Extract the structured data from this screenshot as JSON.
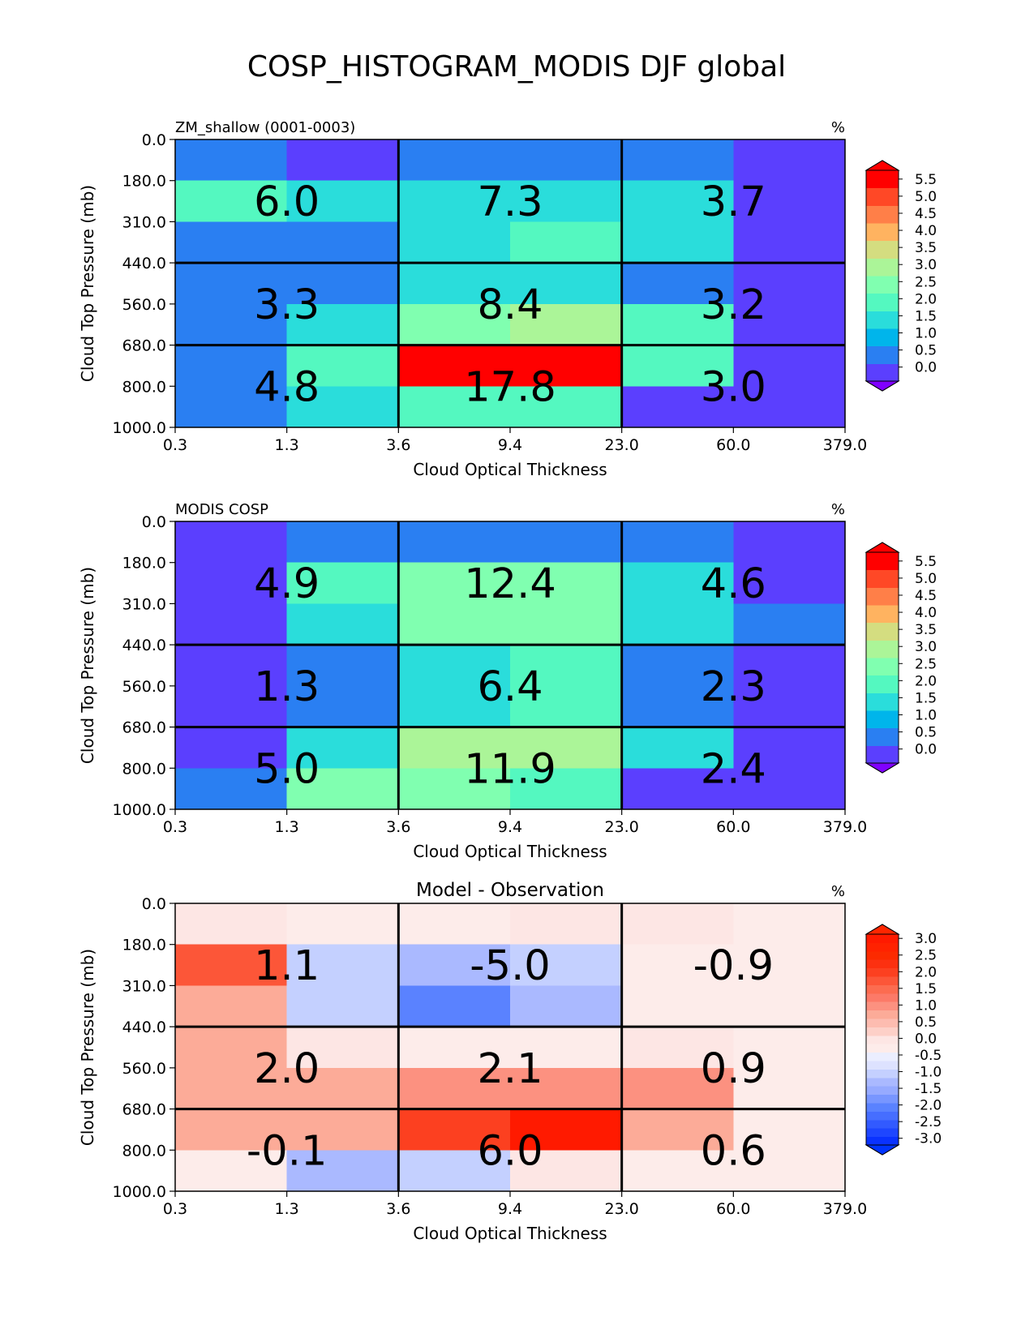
{
  "figure": {
    "title": "COSP_HISTOGRAM_MODIS DJF global"
  },
  "chart_data": [
    {
      "type": "heatmap",
      "panel_label": "ZM_shallow (0001-0003)",
      "title": "",
      "units": "%",
      "xlabel": "Cloud Optical Thickness",
      "ylabel": "Cloud Top Pressure (mb)",
      "x_ticks": [
        "0.3",
        "1.3",
        "3.6",
        "9.4",
        "23.0",
        "60.0",
        "379.0"
      ],
      "y_ticks": [
        "0.0",
        "180.0",
        "310.0",
        "440.0",
        "560.0",
        "680.0",
        "800.0",
        "1000.0"
      ],
      "cells": [
        [
          0.8,
          0.3,
          0.8,
          0.8,
          0.8,
          0.3
        ],
        [
          2.2,
          1.6,
          1.6,
          1.6,
          1.6,
          0.3
        ],
        [
          0.8,
          0.8,
          1.6,
          2.2,
          1.6,
          0.3
        ],
        [
          0.8,
          0.8,
          1.6,
          1.6,
          0.8,
          0.3
        ],
        [
          0.8,
          1.6,
          2.8,
          3.3,
          2.2,
          0.3
        ],
        [
          0.8,
          2.4,
          5.8,
          5.8,
          2.4,
          0.3
        ],
        [
          0.8,
          1.6,
          2.4,
          2.2,
          0.3,
          0.3
        ]
      ],
      "group_labels": [
        [
          "6.0",
          "7.3",
          "3.7"
        ],
        [
          "3.3",
          "8.4",
          "3.2"
        ],
        [
          "4.8",
          "17.8",
          "3.0"
        ]
      ],
      "colorbar": {
        "ticks": [
          "0.0",
          "0.5",
          "1.0",
          "1.5",
          "2.0",
          "2.5",
          "3.0",
          "3.5",
          "4.0",
          "4.5",
          "5.0",
          "5.5"
        ],
        "min": 0,
        "max": 5.5,
        "step": 0.5,
        "extend": "both",
        "colors": [
          "#5b3ffe",
          "#2a7ff2",
          "#00b5eb",
          "#2adddb",
          "#54f8c0",
          "#80ffb0",
          "#abf598",
          "#d4dd80",
          "#ffb360",
          "#ff7f48",
          "#ff4826",
          "#ff0000"
        ],
        "under_color": "#8000ff",
        "over_color": "#ff0000"
      }
    },
    {
      "type": "heatmap",
      "panel_label": "MODIS COSP",
      "title": "",
      "units": "%",
      "xlabel": "Cloud Optical Thickness",
      "ylabel": "Cloud Top Pressure (mb)",
      "x_ticks": [
        "0.3",
        "1.3",
        "3.6",
        "9.4",
        "23.0",
        "60.0",
        "379.0"
      ],
      "y_ticks": [
        "0.0",
        "180.0",
        "310.0",
        "440.0",
        "560.0",
        "680.0",
        "800.0",
        "1000.0"
      ],
      "cells": [
        [
          0.3,
          0.8,
          0.8,
          0.8,
          0.8,
          0.3
        ],
        [
          0.3,
          2.2,
          2.6,
          2.6,
          1.6,
          0.3
        ],
        [
          0.3,
          1.6,
          2.6,
          2.6,
          1.6,
          0.8
        ],
        [
          0.3,
          0.8,
          1.6,
          2.2,
          0.8,
          0.3
        ],
        [
          0.3,
          0.8,
          1.6,
          2.2,
          0.8,
          0.3
        ],
        [
          0.3,
          1.6,
          3.3,
          3.3,
          1.6,
          0.3
        ],
        [
          0.8,
          2.6,
          2.8,
          2.2,
          0.3,
          0.3
        ]
      ],
      "group_labels": [
        [
          "4.9",
          "12.4",
          "4.6"
        ],
        [
          "1.3",
          "6.4",
          "2.3"
        ],
        [
          "5.0",
          "11.9",
          "2.4"
        ]
      ],
      "colorbar": {
        "ticks": [
          "0.0",
          "0.5",
          "1.0",
          "1.5",
          "2.0",
          "2.5",
          "3.0",
          "3.5",
          "4.0",
          "4.5",
          "5.0",
          "5.5"
        ],
        "min": 0,
        "max": 5.5,
        "step": 0.5,
        "extend": "both",
        "colors": [
          "#5b3ffe",
          "#2a7ff2",
          "#00b5eb",
          "#2adddb",
          "#54f8c0",
          "#80ffb0",
          "#abf598",
          "#d4dd80",
          "#ffb360",
          "#ff7f48",
          "#ff4826",
          "#ff0000"
        ],
        "under_color": "#8000ff",
        "over_color": "#ff0000"
      }
    },
    {
      "type": "heatmap",
      "panel_label": "",
      "title": "Model - Observation",
      "units": "%",
      "xlabel": "Cloud Optical Thickness",
      "ylabel": "Cloud Top Pressure (mb)",
      "x_ticks": [
        "0.3",
        "1.3",
        "3.6",
        "9.4",
        "23.0",
        "60.0",
        "379.0"
      ],
      "y_ticks": [
        "0.0",
        "180.0",
        "310.0",
        "440.0",
        "560.0",
        "680.0",
        "800.0",
        "1000.0"
      ],
      "cells": [
        [
          0.2,
          -0.2,
          -0.2,
          0.2,
          0.2,
          -0.2
        ],
        [
          1.8,
          -0.8,
          -1.2,
          -0.8,
          -0.2,
          -0.2
        ],
        [
          0.8,
          -0.8,
          -1.8,
          -1.2,
          -0.2,
          -0.2
        ],
        [
          0.8,
          0.2,
          -0.2,
          -0.2,
          0.2,
          -0.2
        ],
        [
          0.8,
          0.8,
          1.2,
          1.2,
          1.2,
          -0.2
        ],
        [
          0.8,
          0.8,
          2.2,
          3.2,
          0.8,
          -0.2
        ],
        [
          -0.2,
          -1.2,
          -0.8,
          0.2,
          -0.2,
          -0.2
        ]
      ],
      "group_labels": [
        [
          "1.1",
          "-5.0",
          "-0.9"
        ],
        [
          "2.0",
          "2.1",
          "0.9"
        ],
        [
          "-0.1",
          "6.0",
          "0.6"
        ]
      ],
      "colorbar": {
        "ticks": [
          "-3.0",
          "-2.5",
          "-2.0",
          "-1.5",
          "-1.0",
          "-0.5",
          "0.0",
          "0.5",
          "1.0",
          "1.5",
          "2.0",
          "2.5",
          "3.0"
        ],
        "min": -3,
        "max": 3.25,
        "step": 0.25,
        "extend": "both",
        "colors": [
          "#0a32ff",
          "#1e46ff",
          "#325aff",
          "#466eff",
          "#5a82ff",
          "#7896ff",
          "#96aaff",
          "#aab9ff",
          "#c4d0ff",
          "#dde2ff",
          "#ebeeff",
          "#fdecea",
          "#fde6e4",
          "#fdd0c8",
          "#fdbcb0",
          "#fcab98",
          "#fc9180",
          "#fc7a68",
          "#fc6c50",
          "#fc5638",
          "#fc4020",
          "#fc3010",
          "#fc2a00",
          "#ff2200",
          "#ff1a00"
        ],
        "under_color": "#0033ff",
        "over_color": "#ff2600"
      }
    }
  ]
}
